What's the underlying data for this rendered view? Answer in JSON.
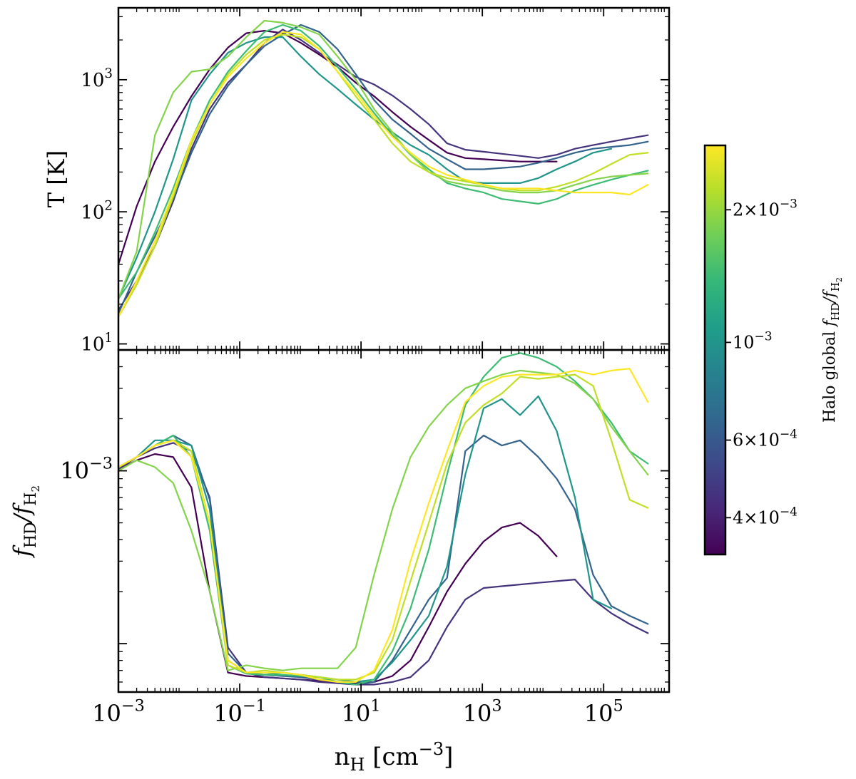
{
  "chart_data": {
    "type": "line",
    "xlabel": "n_H [cm^-3]",
    "x_scale": "log",
    "xlim": [
      0.001,
      1200000
    ],
    "x_ticks": [
      {
        "value": 0.001,
        "base": "10",
        "exp": "−3"
      },
      {
        "value": 0.1,
        "base": "10",
        "exp": "−1"
      },
      {
        "value": 10,
        "base": "10",
        "exp": "1"
      },
      {
        "value": 1000,
        "base": "10",
        "exp": "3"
      },
      {
        "value": 100000,
        "base": "10",
        "exp": "5"
      }
    ],
    "x": [
      0.001,
      0.002,
      0.004,
      0.008,
      0.016,
      0.032,
      0.064,
      0.128,
      0.256,
      0.512,
      1.02,
      2.05,
      4.1,
      8.19,
      16.4,
      32.8,
      65.5,
      131,
      262,
      524,
      1050,
      2100,
      4190,
      8390,
      16800,
      33600,
      67100,
      134000,
      268000,
      537000
    ],
    "colorbar": {
      "label": "Halo global f_HD/f_H2",
      "scale": "log",
      "range": [
        0.00033,
        0.0028
      ],
      "colormap_stops": [
        "#440154",
        "#482878",
        "#3e4989",
        "#31688e",
        "#26828e",
        "#1f9e89",
        "#35b779",
        "#6ece58",
        "#b5de2b",
        "#fde725"
      ],
      "ticks": [
        {
          "value": 0.0004,
          "mant": "4",
          "exp": "−4"
        },
        {
          "value": 0.0006,
          "mant": "6",
          "exp": "−4"
        },
        {
          "value": 0.001,
          "mant": "",
          "exp": "−3"
        },
        {
          "value": 0.002,
          "mant": "2",
          "exp": "−3"
        }
      ]
    },
    "panels": [
      {
        "name": "temperature",
        "ylabel": "T [K]",
        "y_scale": "log",
        "ylim": [
          9,
          3500
        ],
        "y_ticks": [
          {
            "value": 10,
            "base": "10",
            "exp": "1"
          },
          {
            "value": 100,
            "base": "10",
            "exp": "2"
          },
          {
            "value": 1000,
            "base": "10",
            "exp": "3"
          }
        ],
        "series": [
          {
            "color": "#440154",
            "values": [
              40,
              110,
              240,
              440,
              750,
              1200,
              1750,
              2250,
              2350,
              2250,
              1900,
              1550,
              1250,
              950,
              750,
              570,
              440,
              350,
              280,
              255,
              250,
              245,
              240,
              240,
              240,
              null,
              null,
              null,
              null,
              null
            ]
          },
          {
            "color": "#46337e",
            "values": [
              18,
              30,
              55,
              120,
              300,
              600,
              950,
              1300,
              1900,
              2400,
              2000,
              1600,
              1300,
              1050,
              920,
              760,
              600,
              460,
              330,
              295,
              285,
              275,
              265,
              255,
              270,
              300,
              320,
              340,
              360,
              380
            ]
          },
          {
            "color": "#33638d",
            "values": [
              17,
              35,
              65,
              125,
              280,
              550,
              900,
              1300,
              1800,
              2200,
              2600,
              2300,
              1700,
              1100,
              700,
              500,
              390,
              300,
              250,
              210,
              210,
              215,
              220,
              235,
              255,
              280,
              300,
              310,
              320,
              340
            ]
          },
          {
            "color": "#1f958b",
            "values": [
              22,
              45,
              100,
              250,
              700,
              1100,
              1600,
              1900,
              2100,
              2100,
              1500,
              1100,
              850,
              650,
              500,
              400,
              320,
              270,
              210,
              170,
              165,
              165,
              165,
              180,
              210,
              240,
              280,
              300,
              null,
              null
            ]
          },
          {
            "color": "#3dbc74",
            "values": [
              22,
              35,
              70,
              150,
              350,
              700,
              1150,
              1650,
              2300,
              2600,
              2350,
              1800,
              1250,
              850,
              560,
              380,
              270,
              210,
              165,
              150,
              140,
              125,
              120,
              115,
              125,
              145,
              160,
              175,
              190,
              205
            ]
          },
          {
            "color": "#84d44b",
            "values": [
              22,
              50,
              380,
              800,
              1150,
              1200,
              1500,
              2100,
              2800,
              2700,
              2500,
              2200,
              1500,
              1000,
              600,
              400,
              270,
              200,
              170,
              160,
              155,
              145,
              140,
              140,
              145,
              160,
              175,
              185,
              190,
              195
            ]
          },
          {
            "color": "#c0df25",
            "values": [
              16,
              28,
              55,
              130,
              330,
              650,
              1100,
              1550,
              2000,
              2200,
              2100,
              1700,
              1150,
              750,
              500,
              330,
              240,
              200,
              180,
              170,
              160,
              150,
              145,
              145,
              155,
              170,
              195,
              230,
              270,
              280
            ]
          },
          {
            "color": "#fde725",
            "values": [
              16,
              30,
              60,
              140,
              350,
              650,
              1050,
              1450,
              1900,
              2300,
              2200,
              1700,
              1150,
              800,
              530,
              370,
              280,
              220,
              190,
              175,
              160,
              150,
              150,
              150,
              145,
              140,
              140,
              140,
              135,
              160
            ]
          }
        ]
      },
      {
        "name": "ratio",
        "ylabel": "f_HD/f_H2",
        "y_scale": "log",
        "ylim": [
          5.25e-05,
          0.005
        ],
        "y_ticks": [
          {
            "value": 0.001,
            "base": "10",
            "exp": "−3"
          }
        ],
        "series": [
          {
            "color": "#440154",
            "values": [
              0.00102,
              0.00115,
              0.00125,
              0.0012,
              0.0008,
              0.0002,
              6.8e-05,
              6.5e-05,
              6.4e-05,
              6.3e-05,
              6.2e-05,
              6.1e-05,
              6e-05,
              5.9e-05,
              6e-05,
              6.5e-05,
              8e-05,
              0.000125,
              0.0002,
              0.00029,
              0.00039,
              0.00047,
              0.0005,
              0.00042,
              0.00032,
              null,
              null,
              null,
              null,
              null
            ]
          },
          {
            "color": "#46337e",
            "values": [
              0.00102,
              0.0012,
              0.00135,
              0.00145,
              0.0013,
              0.0007,
              9.5e-05,
              6.8e-05,
              6.4e-05,
              6.3e-05,
              6.2e-05,
              6e-05,
              5.9e-05,
              5.8e-05,
              5.8e-05,
              6e-05,
              6.4e-05,
              8e-05,
              0.000125,
              0.00018,
              0.00021,
              0.000215,
              0.00022,
              0.000225,
              0.00023,
              0.000235,
              0.00018,
              0.00015,
              0.00013,
              0.000115
            ]
          },
          {
            "color": "#33638d",
            "values": [
              0.00105,
              0.0012,
              0.0014,
              0.0016,
              0.0014,
              0.00068,
              8.8e-05,
              6.8e-05,
              6.6e-05,
              6.5e-05,
              6.4e-05,
              6.2e-05,
              6e-05,
              5.8e-05,
              6e-05,
              8e-05,
              0.00012,
              0.00018,
              0.00024,
              0.0013,
              0.0016,
              0.0014,
              0.0015,
              0.0012,
              0.0009,
              0.0006,
              0.00025,
              0.000165,
              0.000145,
              0.00013
            ]
          },
          {
            "color": "#1f958b",
            "values": [
              0.00105,
              0.0012,
              0.0015,
              0.0015,
              0.0014,
              0.0006,
              8e-05,
              6.8e-05,
              6.6e-05,
              6.8e-05,
              6.6e-05,
              6.4e-05,
              6.2e-05,
              6e-05,
              6.2e-05,
              7.8e-05,
              0.000105,
              0.000145,
              0.00028,
              0.00095,
              0.0023,
              0.0026,
              0.0021,
              0.0027,
              0.0017,
              0.0007,
              0.00018,
              0.00016,
              null,
              null
            ]
          },
          {
            "color": "#3dbc74",
            "values": [
              0.00105,
              0.0012,
              0.0014,
              0.0016,
              0.0012,
              0.00045,
              7.5e-05,
              6.7e-05,
              6.6e-05,
              6.6e-05,
              6.5e-05,
              6.4e-05,
              6e-05,
              5.8e-05,
              6.2e-05,
              9e-05,
              0.00016,
              0.00035,
              0.00095,
              0.0024,
              0.0035,
              0.0045,
              0.0048,
              0.0045,
              0.004,
              0.0033,
              0.0026,
              0.0019,
              0.0013,
              0.0011
            ]
          },
          {
            "color": "#84d44b",
            "values": [
              0.001,
              0.00115,
              0.00105,
              0.00085,
              0.00045,
              0.0002,
              7e-05,
              7.5e-05,
              7.2e-05,
              7e-05,
              7.2e-05,
              7.2e-05,
              7.2e-05,
              9.5e-05,
              0.00025,
              0.0006,
              0.0012,
              0.0018,
              0.0024,
              0.003,
              0.0033,
              0.0036,
              0.0038,
              0.0037,
              0.0036,
              0.0032,
              0.0026,
              0.0018,
              0.0013,
              0.00095
            ]
          },
          {
            "color": "#c0df25",
            "values": [
              0.00105,
              0.0012,
              0.0014,
              0.0015,
              0.0013,
              0.0005,
              7.5e-05,
              6.8e-05,
              7e-05,
              6.8e-05,
              6.6e-05,
              6.4e-05,
              6.2e-05,
              6.2e-05,
              6.8e-05,
              0.000105,
              0.00023,
              0.0005,
              0.0011,
              0.0019,
              0.0024,
              0.0028,
              0.0035,
              0.0034,
              0.0035,
              0.0036,
              0.0031,
              0.0015,
              0.00068,
              0.00061
            ]
          },
          {
            "color": "#fde725",
            "values": [
              0.00105,
              0.0012,
              0.0014,
              0.0015,
              0.0012,
              0.0005,
              8e-05,
              6.8e-05,
              6.8e-05,
              6.8e-05,
              6.6e-05,
              6.2e-05,
              6e-05,
              6e-05,
              7e-05,
              0.00012,
              0.0003,
              0.00065,
              0.0013,
              0.0025,
              0.0031,
              0.0035,
              0.0036,
              0.0036,
              0.0036,
              0.0038,
              0.0036,
              0.0038,
              0.0039,
              0.0025
            ]
          }
        ]
      }
    ]
  }
}
